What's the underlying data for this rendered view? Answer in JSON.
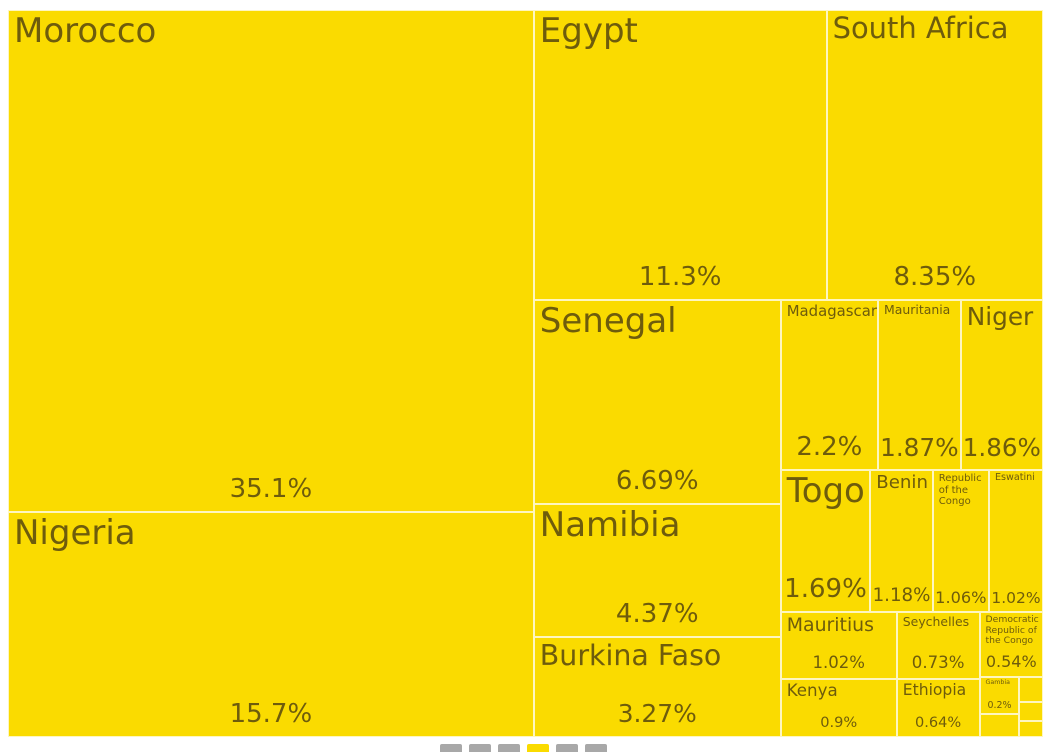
{
  "chart_data": {
    "type": "treemap",
    "color": "#fadb00",
    "categories": [
      "Morocco",
      "Nigeria",
      "Egypt",
      "South Africa",
      "Senegal",
      "Namibia",
      "Burkina Faso",
      "Madagascar",
      "Mauritania",
      "Niger",
      "Togo",
      "Benin",
      "Republic of the Congo",
      "Eswatini",
      "Mauritius",
      "Seychelles",
      "Democratic Republic of the Congo",
      "Kenya",
      "Ethiopia",
      "Gambia",
      null,
      null,
      null,
      null
    ],
    "values": [
      35.1,
      15.7,
      11.3,
      8.35,
      6.69,
      4.37,
      3.27,
      2.2,
      1.87,
      1.86,
      1.69,
      1.18,
      1.06,
      1.02,
      1.02,
      0.73,
      0.54,
      0.9,
      0.64,
      0.2,
      0.12,
      0.08,
      0.06,
      0.05
    ],
    "value_labels": [
      "35.1%",
      "15.7%",
      "11.3%",
      "8.35%",
      "6.69%",
      "4.37%",
      "3.27%",
      "2.2%",
      "1.87%",
      "1.86%",
      "1.69%",
      "1.18%",
      "1.06%",
      "1.02%",
      "1.02%",
      "0.73%",
      "0.54%",
      "0.9%",
      "0.64%",
      "0.2%",
      null,
      null,
      null,
      null
    ]
  }
}
